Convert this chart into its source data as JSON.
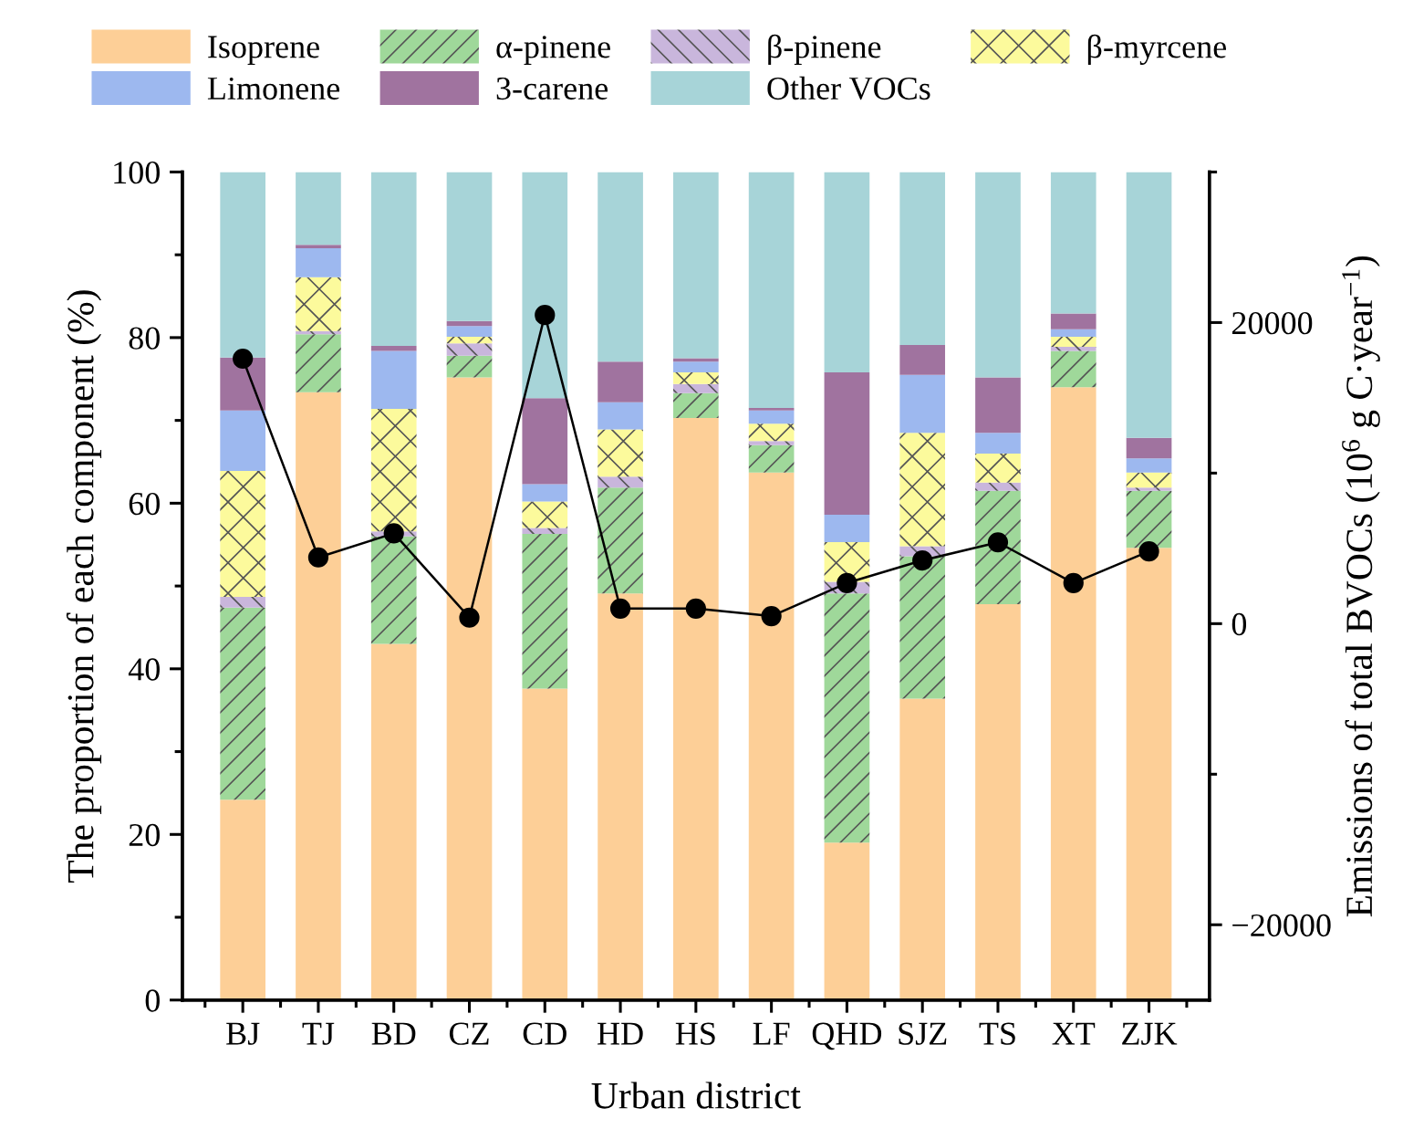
{
  "chart_data": {
    "type": "bar",
    "stacked": true,
    "xlabel": "Urban district",
    "ylabel": "The proportion of each component (%)",
    "y2label": "Emissions of total BVOCs (10$^{6}$ g C·year$^{−1}$)",
    "categories": [
      "BJ",
      "TJ",
      "BD",
      "CZ",
      "CD",
      "HD",
      "HS",
      "LF",
      "QHD",
      "SJZ",
      "TS",
      "XT",
      "ZJK"
    ],
    "ylim": [
      0,
      100
    ],
    "yticks": [
      0,
      20,
      40,
      60,
      80,
      100
    ],
    "y2lim": [
      -25000,
      30000
    ],
    "y2ticks": [
      -20000,
      0,
      20000
    ],
    "legend": "top",
    "grid": false,
    "series": [
      {
        "name": "Isoprene",
        "color": "#fdcf97",
        "values": [
          24.2,
          73.4,
          43.0,
          75.2,
          37.6,
          49.1,
          70.3,
          63.7,
          19.0,
          36.4,
          47.8,
          74.0,
          54.6
        ]
      },
      {
        "name": "α-pinene",
        "color": "#9fd89a",
        "values": [
          23.2,
          7.0,
          13.0,
          2.6,
          18.7,
          12.8,
          3.0,
          3.3,
          30.1,
          17.2,
          13.7,
          4.4,
          6.9
        ]
      },
      {
        "name": "β-pinene",
        "color": "#c9b6dc",
        "values": [
          1.3,
          0.4,
          0.6,
          1.5,
          0.7,
          1.3,
          1.1,
          0.5,
          1.4,
          1.2,
          1.0,
          0.5,
          0.4
        ]
      },
      {
        "name": "β-myrcene",
        "color": "#fcfa9c",
        "values": [
          15.2,
          6.5,
          14.8,
          0.8,
          3.2,
          5.7,
          1.4,
          2.1,
          4.8,
          13.7,
          3.5,
          1.2,
          1.8
        ]
      },
      {
        "name": "Limonene",
        "color": "#9db8ef",
        "values": [
          7.3,
          3.5,
          7.0,
          1.3,
          2.1,
          3.3,
          1.3,
          1.6,
          3.3,
          7.0,
          2.5,
          0.9,
          1.7
        ]
      },
      {
        "name": "3-carene",
        "color": "#a0739f",
        "values": [
          6.4,
          0.4,
          0.6,
          0.6,
          10.4,
          4.9,
          0.4,
          0.3,
          17.2,
          3.6,
          6.7,
          1.9,
          2.5
        ]
      },
      {
        "name": "Other VOCs",
        "color": "#a7d4d8",
        "values": [
          22.4,
          8.8,
          21.0,
          18.0,
          27.3,
          22.9,
          22.5,
          28.5,
          24.2,
          20.9,
          24.8,
          17.1,
          32.1
        ]
      },
      {
        "type": "line",
        "axis": "y2",
        "color": "#000000",
        "marker": "circle",
        "line_style": "solid",
        "values": [
          17600,
          4400,
          6000,
          400,
          20500,
          1000,
          1000,
          500,
          2700,
          4200,
          5400,
          2700,
          4800
        ]
      }
    ]
  }
}
